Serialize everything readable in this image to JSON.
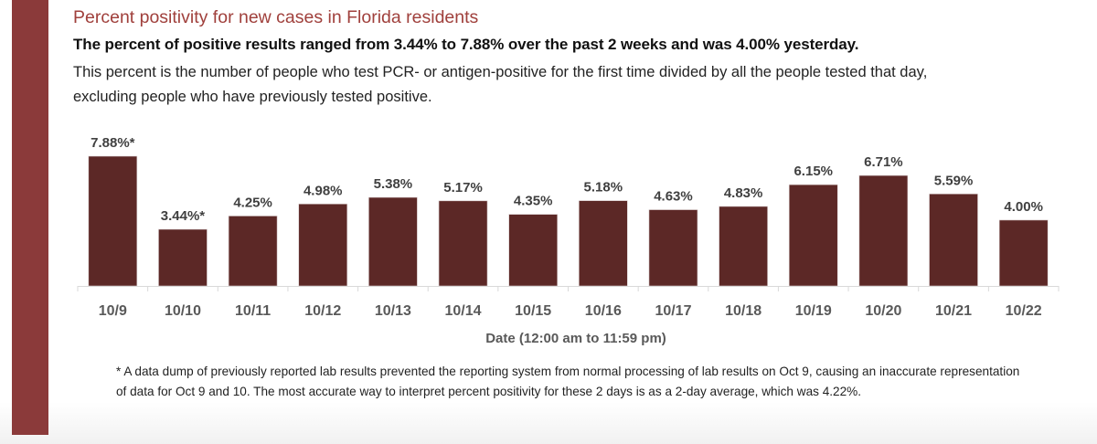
{
  "header": {
    "title": "Percent positivity for new cases in Florida residents",
    "headline": "The percent of positive results ranged from 3.44% to 7.88% over the past 2 weeks and was 4.00% yesterday.",
    "description": "This percent is the number of people who test PCR- or antigen-positive for the first time divided by all the people tested that day, excluding people who have previously tested positive."
  },
  "colors": {
    "accent_stripe": "#8B3A3A",
    "title": "#A0403C",
    "bar": "#5C2826",
    "axis": "#D9D9D9"
  },
  "chart_data": {
    "type": "bar",
    "title": "Percent positivity for new cases in Florida residents",
    "xlabel": "Date (12:00 am to 11:59 pm)",
    "ylabel": "",
    "ylim": [
      0,
      7.88
    ],
    "grid": false,
    "legend": "none",
    "categories": [
      "10/9",
      "10/10",
      "10/11",
      "10/12",
      "10/13",
      "10/14",
      "10/15",
      "10/16",
      "10/17",
      "10/18",
      "10/19",
      "10/20",
      "10/21",
      "10/22"
    ],
    "values": [
      7.88,
      3.44,
      4.25,
      4.98,
      5.38,
      5.17,
      4.35,
      5.18,
      4.63,
      4.83,
      6.15,
      6.71,
      5.59,
      4.0
    ],
    "data_labels": [
      "7.88%*",
      "3.44%*",
      "4.25%",
      "4.98%",
      "5.38%",
      "5.17%",
      "4.35%",
      "5.18%",
      "4.63%",
      "4.83%",
      "6.15%",
      "6.71%",
      "5.59%",
      "4.00%"
    ],
    "annotations": [
      "* marks 10/9 and 10/10 values affected by a data dump"
    ]
  },
  "footnote": "* A data dump of previously reported lab results prevented the reporting system from normal processing of lab results on Oct 9, causing an inaccurate representation of data for Oct 9 and 10. The most accurate way to interpret percent positivity for these 2 days is as a 2-day average, which was 4.22%."
}
